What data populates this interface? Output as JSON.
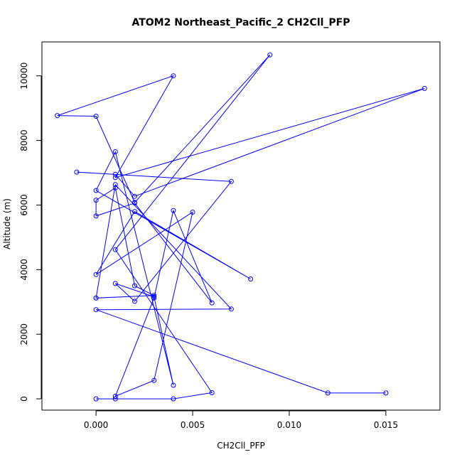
{
  "chart_data": {
    "type": "line",
    "title": "ATOM2 Northeast_Pacific_2 CH2Cll_PFP",
    "xlabel": "CH2Cll_PFP",
    "ylabel": "Altitude (m)",
    "xlim": [
      -0.0028,
      0.0178
    ],
    "ylim": [
      -350,
      11050
    ],
    "xticks": [
      0,
      0.005,
      0.01,
      0.015
    ],
    "xtick_labels": [
      "0.000",
      "0.005",
      "0.010",
      "0.015"
    ],
    "yticks": [
      0,
      2000,
      4000,
      6000,
      8000,
      10000
    ],
    "ytick_labels": [
      "0",
      "2000",
      "4000",
      "6000",
      "8000",
      "10000"
    ],
    "grid": false,
    "line_color": "#0000ff",
    "marker": "open-circle",
    "series": [
      {
        "x": [
          0.015,
          0.012,
          0.0,
          0.007,
          0.001,
          0.0,
          0.0,
          0.003,
          0.002,
          0.001,
          0.0,
          0.0,
          0.002,
          0.006,
          0.004,
          0.003,
          0.001,
          0.003,
          0.005,
          0.0,
          0.002,
          0.008,
          0.0,
          0.001,
          0.004,
          0.003,
          0.001,
          0.002,
          0.007,
          -0.001,
          0.001,
          0.002,
          0.017,
          0.001,
          0.004,
          -0.002,
          0.0,
          0.002,
          0.009,
          0.001,
          0.006,
          0.004,
          0.001,
          0.0
        ],
        "y": [
          180,
          180,
          2760,
          2780,
          6630,
          3120,
          3120,
          3200,
          3500,
          6530,
          6150,
          5660,
          6060,
          2970,
          5830,
          3120,
          80,
          570,
          5780,
          3850,
          5800,
          3710,
          6450,
          7650,
          420,
          3160,
          3570,
          3020,
          6730,
          7020,
          6950,
          6270,
          9610,
          6850,
          10000,
          8770,
          8750,
          6080,
          10650,
          4620,
          190,
          0,
          0,
          0
        ]
      }
    ]
  }
}
